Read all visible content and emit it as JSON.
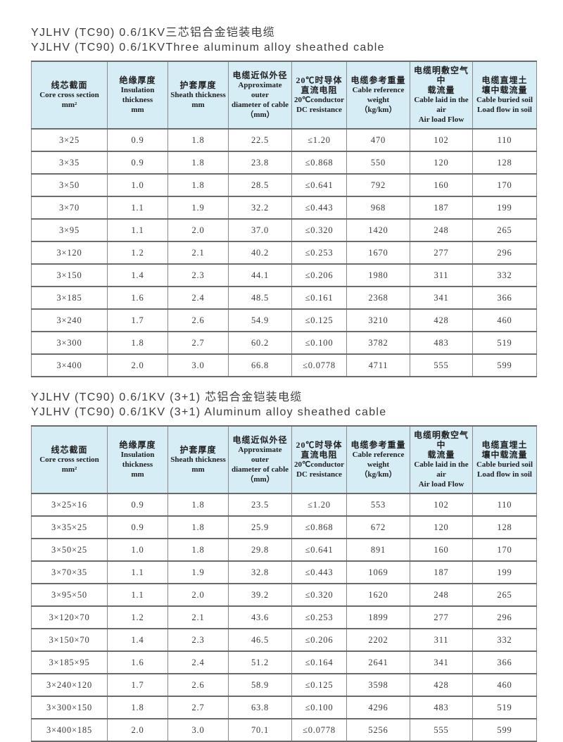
{
  "colors": {
    "header_bg": "#d7edf6",
    "border_vertical": "#8a8a8a",
    "border_horizontal": "#6b6b6b",
    "cell_text": "#3a3a3a",
    "title_text": "#3d3d3d"
  },
  "table1": {
    "title_zh": "YJLHV (TC90) 0.6/1KV三芯铝合金铠装电缆",
    "title_en": "YJLHV (TC90) 0.6/1KVThree aluminum alloy sheathed cable"
  },
  "table2": {
    "title_zh": "YJLHV (TC90) 0.6/1KV (3+1) 芯铝合金铠装电缆",
    "title_en": "YJLHV (TC90) 0.6/1KV (3+1) Aluminum alloy sheathed cable"
  },
  "columns": [
    {
      "id": "core-cross-section",
      "lines": [
        "线芯截面",
        "Core cross section",
        "mm²"
      ]
    },
    {
      "id": "insulation-thickness",
      "lines": [
        "绝缘厚度",
        "Insulation",
        "thickness",
        "mm"
      ]
    },
    {
      "id": "sheath-thickness",
      "lines": [
        "护套厚度",
        "Sheath thickness",
        "mm"
      ]
    },
    {
      "id": "outer-diameter",
      "lines": [
        "电缆近似外径",
        "Approximate outer",
        "diameter of cable",
        "（mm）"
      ]
    },
    {
      "id": "dc-resistance",
      "lines": [
        "20℃时导体",
        "直流电阻",
        "20℃conductor",
        "DC resistance"
      ]
    },
    {
      "id": "reference-weight",
      "lines": [
        "电缆参考重量",
        "Cable reference",
        "weight",
        "（kg/km）"
      ]
    },
    {
      "id": "air-load-flow",
      "lines": [
        "电缆明敷空气中",
        "载流量",
        "Cable laid in the air",
        "Air load Flow"
      ]
    },
    {
      "id": "buried-load-flow",
      "lines": [
        "电缆直埋土",
        "壤中载流量",
        "Cable buried soil",
        "Load flow in soil"
      ]
    }
  ],
  "table1_rows": [
    [
      "3×25",
      "0.9",
      "1.8",
      "22.5",
      "≤1.20",
      "470",
      "102",
      "110"
    ],
    [
      "3×35",
      "0.9",
      "1.8",
      "23.8",
      "≤0.868",
      "550",
      "120",
      "128"
    ],
    [
      "3×50",
      "1.0",
      "1.8",
      "28.5",
      "≤0.641",
      "792",
      "160",
      "170"
    ],
    [
      "3×70",
      "1.1",
      "1.9",
      "32.2",
      "≤0.443",
      "968",
      "187",
      "199"
    ],
    [
      "3×95",
      "1.1",
      "2.0",
      "37.0",
      "≤0.320",
      "1420",
      "248",
      "265"
    ],
    [
      "3×120",
      "1.2",
      "2.1",
      "40.2",
      "≤0.253",
      "1670",
      "277",
      "296"
    ],
    [
      "3×150",
      "1.4",
      "2.3",
      "44.1",
      "≤0.206",
      "1980",
      "311",
      "332"
    ],
    [
      "3×185",
      "1.6",
      "2.4",
      "48.5",
      "≤0.161",
      "2368",
      "341",
      "366"
    ],
    [
      "3×240",
      "1.7",
      "2.6",
      "54.9",
      "≤0.125",
      "3210",
      "428",
      "460"
    ],
    [
      "3×300",
      "1.8",
      "2.7",
      "60.2",
      "≤0.100",
      "3782",
      "483",
      "519"
    ],
    [
      "3×400",
      "2.0",
      "3.0",
      "66.8",
      "≤0.0778",
      "4711",
      "555",
      "599"
    ]
  ],
  "table2_rows": [
    [
      "3×25×16",
      "0.9",
      "1.8",
      "23.5",
      "≤1.20",
      "553",
      "102",
      "110"
    ],
    [
      "3×35×25",
      "0.9",
      "1.8",
      "25.9",
      "≤0.868",
      "672",
      "120",
      "128"
    ],
    [
      "3×50×25",
      "1.0",
      "1.8",
      "29.8",
      "≤0.641",
      "891",
      "160",
      "170"
    ],
    [
      "3×70×35",
      "1.1",
      "1.9",
      "32.8",
      "≤0.443",
      "1069",
      "187",
      "199"
    ],
    [
      "3×95×50",
      "1.1",
      "2.0",
      "39.2",
      "≤0.320",
      "1620",
      "248",
      "265"
    ],
    [
      "3×120×70",
      "1.2",
      "2.1",
      "43.6",
      "≤0.253",
      "1899",
      "277",
      "296"
    ],
    [
      "3×150×70",
      "1.4",
      "2.3",
      "46.5",
      "≤0.206",
      "2202",
      "311",
      "332"
    ],
    [
      "3×185×95",
      "1.6",
      "2.4",
      "51.2",
      "≤0.164",
      "2641",
      "341",
      "366"
    ],
    [
      "3×240×120",
      "1.7",
      "2.6",
      "58.9",
      "≤0.125",
      "3598",
      "428",
      "460"
    ],
    [
      "3×300×150",
      "1.8",
      "2.7",
      "63.8",
      "≤0.100",
      "4296",
      "483",
      "519"
    ],
    [
      "3×400×185",
      "2.0",
      "3.0",
      "70.1",
      "≤0.0778",
      "5256",
      "555",
      "599"
    ]
  ]
}
